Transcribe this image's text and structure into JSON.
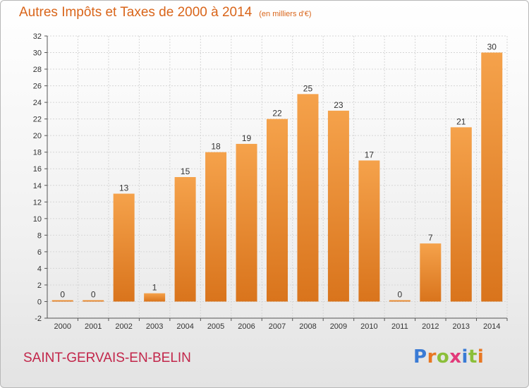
{
  "header": {
    "title": "Autres Impôts et Taxes de 2000 à 2014",
    "subtitle": "(en milliers d'€)"
  },
  "footer": {
    "commune": "SAINT-GERVAIS-EN-BELIN",
    "logo": {
      "text": "Proxiti",
      "letter_colors": [
        "#3a7bd5",
        "#e87722",
        "#8bbf3a",
        "#e23a7a",
        "#3a7bd5",
        "#8bbf3a",
        "#e87722"
      ]
    }
  },
  "colors": {
    "bar_light": "#f5a24b",
    "bar_dark": "#d9741c",
    "grid": "#d6d6d6",
    "axis": "#555555"
  },
  "chart_data": {
    "type": "bar",
    "title": "Autres Impôts et Taxes de 2000 à 2014",
    "subtitle": "(en milliers d'€)",
    "categories": [
      "2000",
      "2001",
      "2002",
      "2003",
      "2004",
      "2005",
      "2006",
      "2007",
      "2008",
      "2009",
      "2010",
      "2011",
      "2012",
      "2013",
      "2014"
    ],
    "values": [
      0,
      0,
      13,
      1,
      15,
      18,
      19,
      22,
      25,
      23,
      17,
      0,
      7,
      21,
      30
    ],
    "data_labels": [
      "0",
      "0",
      "13",
      "1",
      "15",
      "18",
      "19",
      "22",
      "25",
      "23",
      "17",
      "0",
      "7",
      "21",
      "30"
    ],
    "ylim": [
      -2,
      32
    ],
    "yticks": [
      -2,
      0,
      2,
      4,
      6,
      8,
      10,
      12,
      14,
      16,
      18,
      20,
      22,
      24,
      26,
      28,
      30,
      32
    ],
    "grid": true,
    "xlabel": "",
    "ylabel": ""
  }
}
